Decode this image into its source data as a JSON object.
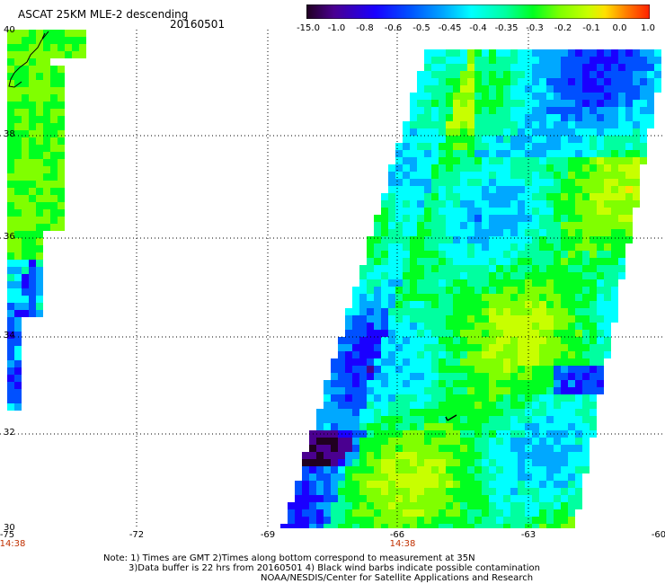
{
  "header": {
    "title": "ASCAT 25KM MLE-2 descending",
    "date": "20160501"
  },
  "colorbar": {
    "labels": [
      "-15.0",
      "-1.0",
      "-0.8",
      "-0.6",
      "-0.5",
      "-0.45",
      "-0.4",
      "-0.35",
      "-0.3",
      "-0.2",
      "-0.1",
      "0.0",
      "1.0"
    ],
    "colors": [
      "#200020",
      "#4a0090",
      "#1a00ff",
      "#0050ff",
      "#00a8ff",
      "#00ffff",
      "#00ffa0",
      "#00ff20",
      "#80ff00",
      "#c8ff00",
      "#ffe000",
      "#ff8000",
      "#ff2000"
    ]
  },
  "map": {
    "lon_labels": [
      "-75",
      "-72",
      "-69",
      "-66",
      "-63",
      "-60"
    ],
    "lat_labels": [
      "40",
      "38",
      "36",
      "34",
      "32",
      "30"
    ],
    "time_labels": [
      {
        "lon": "-75",
        "text": "14:38"
      },
      {
        "lon": "-66",
        "text": "14:38"
      }
    ]
  },
  "footer": {
    "line1": "Note: 1) Times are GMT 2)Times along bottom correspond to measurement at 35N",
    "line2": "3)Data buffer is 22 hrs from 20160501 4) Black wind barbs indicate possible contamination",
    "line3": "NOAA/NESDIS/Center for Satellite Applications and Research"
  }
}
